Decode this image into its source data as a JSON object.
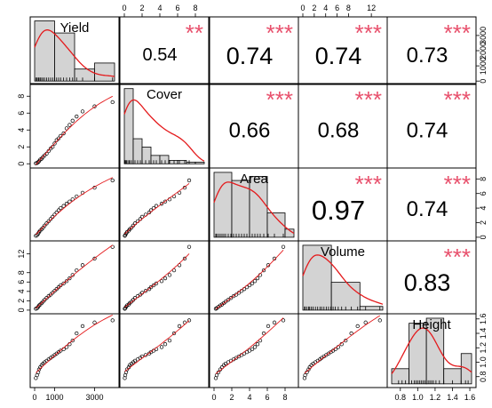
{
  "chart_data": {
    "type": "scatter-matrix",
    "variables": [
      "Yield",
      "Cover",
      "Area",
      "Volume",
      "Height"
    ],
    "colors": {
      "smooth": "#e41a1c",
      "stars": "#e8506c",
      "hist_fill": "#d3d3d3",
      "frame": "#000000"
    },
    "ranges": {
      "Yield": [
        0,
        4000
      ],
      "Cover": [
        0,
        9
      ],
      "Area": [
        0,
        9
      ],
      "Volume": [
        0,
        14
      ],
      "Height": [
        0.7,
        1.62
      ]
    },
    "ticks": {
      "Yield": {
        "values": [
          0,
          1000,
          3000
        ],
        "labels": [
          "0",
          "1000",
          "3000"
        ]
      },
      "Cover": {
        "values": [
          0,
          2,
          4,
          6,
          8
        ],
        "labels": [
          "0",
          "2",
          "4",
          "6",
          "8"
        ]
      },
      "Area": {
        "values": [
          0,
          2,
          4,
          6,
          8
        ],
        "labels": [
          "0",
          "2",
          "4",
          "6",
          "8"
        ]
      },
      "Volume": {
        "values": [
          0,
          2,
          4,
          6,
          8,
          12
        ],
        "labels": [
          "0",
          "2",
          "4",
          "6",
          "8",
          "12"
        ]
      },
      "Height": {
        "values": [
          0.8,
          1.0,
          1.2,
          1.4,
          1.6
        ],
        "labels": [
          "0.8",
          "1.0",
          "1.2",
          "1.4",
          "1.6"
        ]
      }
    },
    "axis_ticks": {
      "left": [
        {
          "var": "Cover",
          "values": [
            0,
            2,
            4,
            6,
            8
          ],
          "labels": [
            "0",
            "2",
            "4",
            "6",
            "8"
          ]
        },
        {
          "var": "Volume",
          "values": [
            0,
            2,
            4,
            6,
            8,
            12
          ],
          "labels": [
            "0",
            "2",
            "4",
            "6",
            "8",
            "12"
          ]
        }
      ],
      "top": [
        {
          "var": "Cover",
          "values": [
            0,
            2,
            4,
            6,
            8
          ],
          "labels": [
            "0",
            "2",
            "4",
            "6",
            "8"
          ]
        },
        {
          "var": "Volume",
          "values": [
            0,
            2,
            4,
            6,
            8,
            12
          ],
          "labels": [
            "0",
            "2",
            "4",
            "6",
            "8",
            "12"
          ]
        }
      ],
      "right": [
        {
          "var": "Yield",
          "values": [
            0,
            1000,
            2000,
            3000
          ],
          "labels": [
            "0",
            "1000",
            "2000",
            "3000"
          ]
        },
        {
          "var": "Area",
          "values": [
            0,
            2,
            4,
            6,
            8
          ],
          "labels": [
            "0",
            "2",
            "4",
            "6",
            "8"
          ]
        },
        {
          "var": "Height",
          "values": [
            0.8,
            1.0,
            1.2,
            1.4,
            1.6
          ],
          "labels": [
            "0.8",
            "1.0",
            "1.2",
            "1.4",
            "1.6"
          ]
        }
      ],
      "bottom": [
        {
          "var": "Yield",
          "values": [
            0,
            1000,
            3000
          ],
          "labels": [
            "0",
            "1000",
            "3000"
          ]
        },
        {
          "var": "Area",
          "values": [
            0,
            2,
            4,
            6,
            8
          ],
          "labels": [
            "0",
            "2",
            "4",
            "6",
            "8"
          ]
        },
        {
          "var": "Height",
          "values": [
            0.8,
            1.0,
            1.2,
            1.4,
            1.6
          ],
          "labels": [
            "0.8",
            "1.0",
            "1.2",
            "1.4",
            "1.6"
          ]
        }
      ]
    },
    "observations": {
      "Yield": [
        60,
        120,
        180,
        220,
        280,
        350,
        420,
        500,
        600,
        700,
        800,
        900,
        1000,
        1100,
        1200,
        1300,
        1450,
        1600,
        1750,
        1900,
        2100,
        2400,
        3000,
        3900
      ],
      "Cover": [
        0.05,
        0.1,
        0.2,
        0.3,
        0.5,
        0.6,
        0.8,
        1.0,
        1.2,
        1.5,
        1.8,
        2.0,
        2.4,
        2.8,
        3.0,
        3.3,
        3.6,
        4.2,
        4.6,
        5.1,
        5.6,
        6.2,
        6.8,
        7.3
      ],
      "Area": [
        0.2,
        0.3,
        0.5,
        0.7,
        0.9,
        1.1,
        1.3,
        1.6,
        1.9,
        2.2,
        2.5,
        2.8,
        3.1,
        3.4,
        3.7,
        4.0,
        4.3,
        4.6,
        4.9,
        5.2,
        5.6,
        6.1,
        6.8,
        7.8
      ],
      "Volume": [
        0.3,
        0.4,
        0.7,
        1.0,
        1.2,
        1.5,
        1.8,
        2.2,
        2.6,
        3.0,
        3.3,
        3.7,
        4.1,
        4.5,
        4.9,
        5.3,
        5.7,
        6.2,
        6.8,
        7.5,
        8.5,
        9.6,
        11.0,
        13.5
      ],
      "Height": [
        0.78,
        0.82,
        0.86,
        0.9,
        0.93,
        0.96,
        0.98,
        1.0,
        1.02,
        1.04,
        1.06,
        1.08,
        1.1,
        1.12,
        1.14,
        1.16,
        1.18,
        1.21,
        1.25,
        1.3,
        1.4,
        1.5,
        1.55,
        1.58
      ]
    },
    "histograms": {
      "Yield": {
        "edges": [
          0,
          1000,
          2000,
          3000,
          4000
        ],
        "counts": [
          10,
          8,
          2,
          3
        ]
      },
      "Cover": {
        "edges": [
          0,
          1,
          2,
          3,
          4,
          5,
          6,
          7,
          8,
          9
        ],
        "counts": [
          9,
          3,
          2,
          1,
          1,
          0.4,
          0.4,
          0.2,
          0.2
        ]
      },
      "Area": {
        "edges": [
          0,
          2,
          4,
          6,
          8,
          9
        ],
        "counts": [
          8,
          7,
          7.5,
          3,
          1
        ]
      },
      "Volume": {
        "edges": [
          0,
          5,
          10,
          14
        ],
        "counts": [
          7,
          3,
          0.4
        ]
      },
      "Height": {
        "edges": [
          0.7,
          0.9,
          1.1,
          1.3,
          1.5,
          1.62
        ],
        "counts": [
          3,
          12,
          13,
          3,
          6
        ]
      }
    },
    "correlations": [
      {
        "row": 0,
        "col": 1,
        "value": "0.54",
        "stars": "**",
        "size": "small"
      },
      {
        "row": 0,
        "col": 2,
        "value": "0.74",
        "stars": "***",
        "size": "large"
      },
      {
        "row": 0,
        "col": 3,
        "value": "0.74",
        "stars": "***",
        "size": "large"
      },
      {
        "row": 0,
        "col": 4,
        "value": "0.73",
        "stars": "***",
        "size": "medium"
      },
      {
        "row": 1,
        "col": 2,
        "value": "0.66",
        "stars": "***",
        "size": "medium"
      },
      {
        "row": 1,
        "col": 3,
        "value": "0.68",
        "stars": "***",
        "size": "medium"
      },
      {
        "row": 1,
        "col": 4,
        "value": "0.74",
        "stars": "***",
        "size": "medium"
      },
      {
        "row": 2,
        "col": 3,
        "value": "0.97",
        "stars": "***",
        "size": "xlarge"
      },
      {
        "row": 2,
        "col": 4,
        "value": "0.74",
        "stars": "***",
        "size": "medium"
      },
      {
        "row": 3,
        "col": 4,
        "value": "0.83",
        "stars": "***",
        "size": "large"
      }
    ]
  }
}
